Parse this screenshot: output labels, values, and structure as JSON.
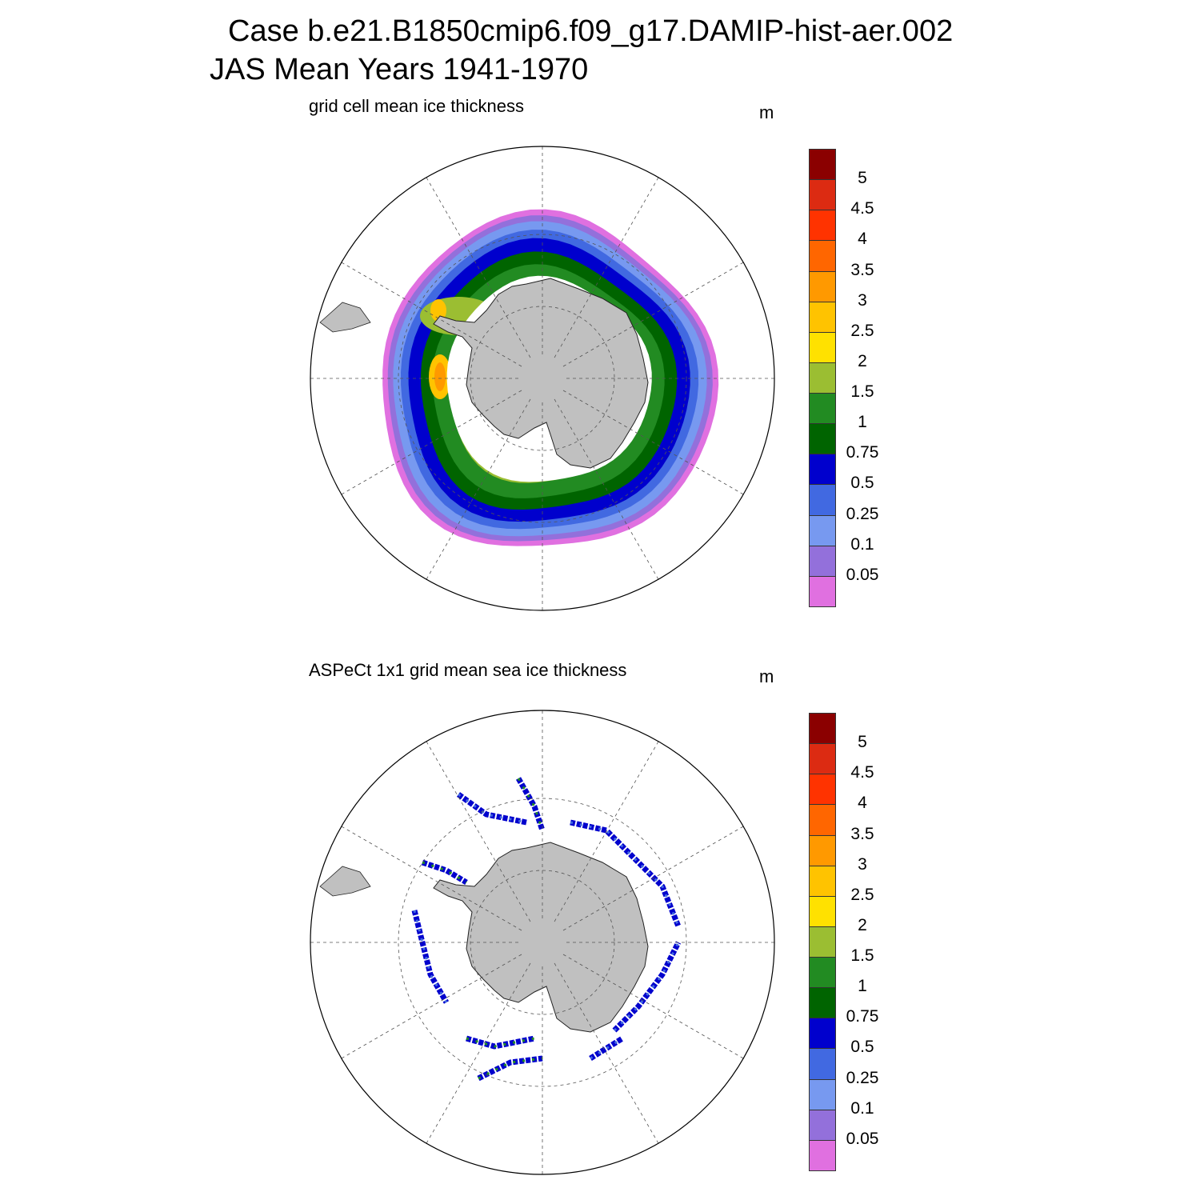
{
  "title": {
    "line1": "Case b.e21.B1850cmip6.f09_g17.DAMIP-hist-aer.002",
    "line2": "JAS Mean   Years 1941-1970"
  },
  "panels": [
    {
      "subtitle": "grid cell mean ice thickness",
      "unit": "m"
    },
    {
      "subtitle": "ASPeCt 1x1 grid mean sea ice thickness",
      "unit": "m"
    }
  ],
  "colorbar": {
    "levels": [
      "5",
      "4.5",
      "4",
      "3.5",
      "3",
      "2.5",
      "2",
      "1.5",
      "1",
      "0.75",
      "0.5",
      "0.25",
      "0.1",
      "0.05"
    ],
    "colors": [
      "#8b0000",
      "#dc2b12",
      "#ff3300",
      "#ff6600",
      "#ff9900",
      "#ffc300",
      "#ffe100",
      "#9bbe32",
      "#228b22",
      "#006400",
      "#0000cd",
      "#4169e1",
      "#7799f0",
      "#9370db",
      "#e070e0"
    ]
  },
  "colors": {
    "land": "#c0c0c0",
    "grid": "#555555"
  }
}
